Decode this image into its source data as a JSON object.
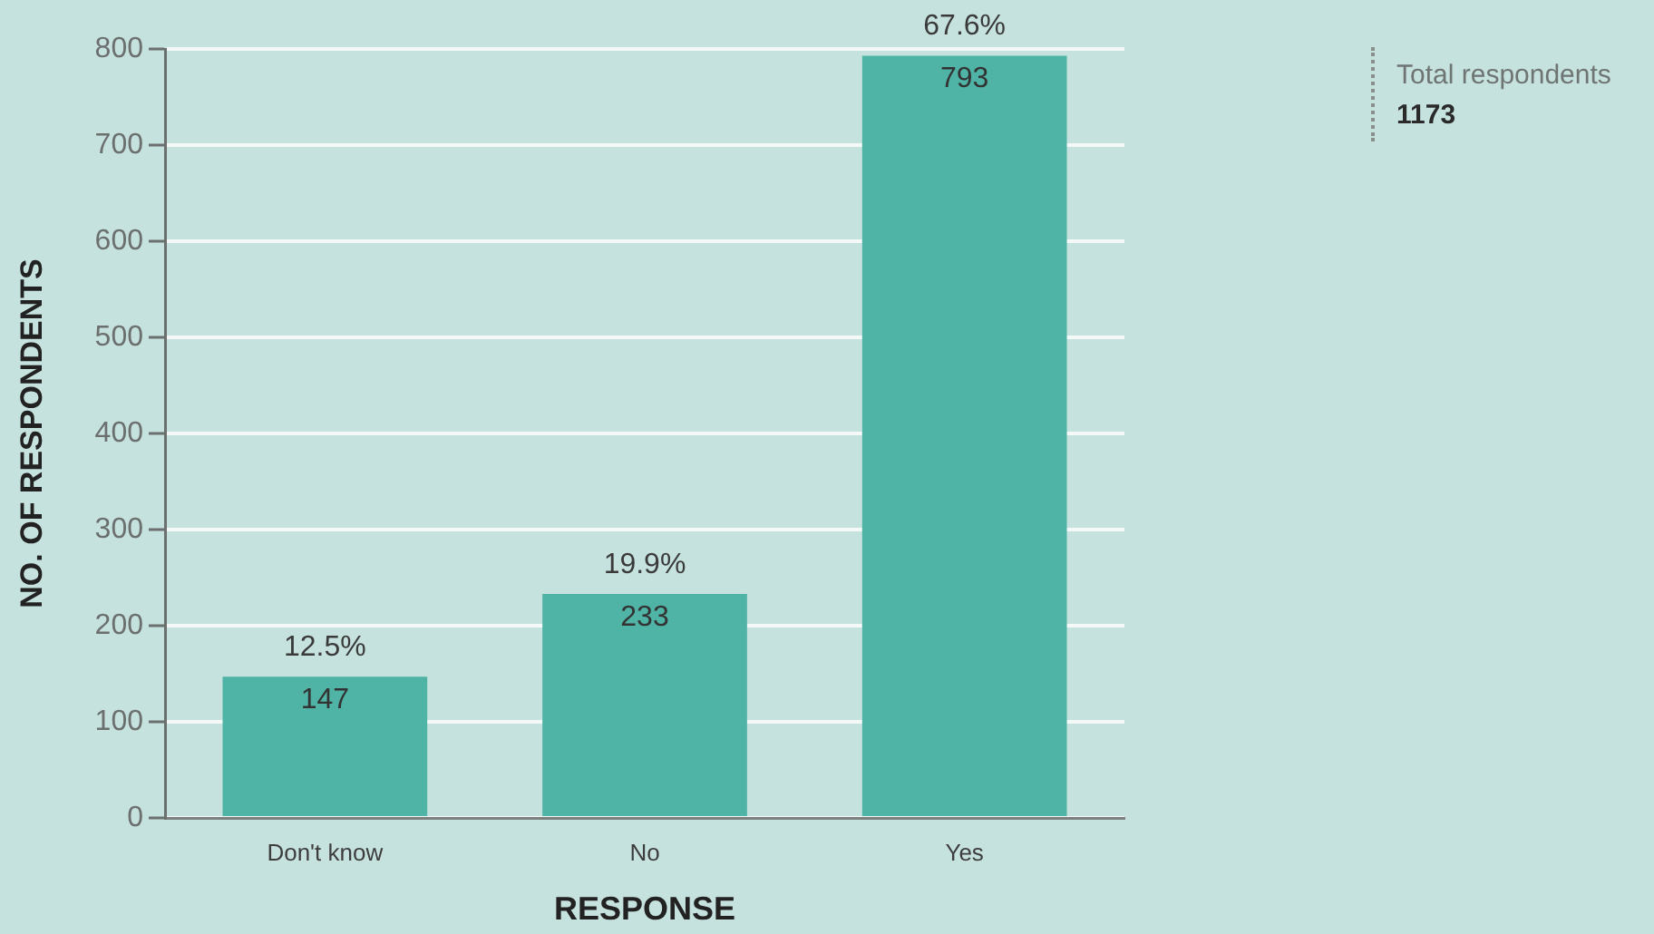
{
  "chart_data": {
    "type": "bar",
    "xlabel": "RESPONSE",
    "ylabel": "NO. OF RESPONDENTS",
    "categories": [
      "Don't know",
      "No",
      "Yes"
    ],
    "values": [
      147,
      233,
      793
    ],
    "color": "#4fb3a5",
    "ylim": [
      0,
      800
    ],
    "yticks": [
      0,
      100,
      200,
      300,
      400,
      500,
      600,
      700,
      800
    ],
    "grid": "y",
    "data_labels": true,
    "annotations": [
      "Total respondents",
      "1173",
      {
        "text": "12.5%",
        "x": "Don't know",
        "y": 147
      },
      {
        "text": "19.9%",
        "x": "No",
        "y": 233
      },
      {
        "text": "67.6%",
        "x": "Yes",
        "y": 793
      }
    ]
  }
}
